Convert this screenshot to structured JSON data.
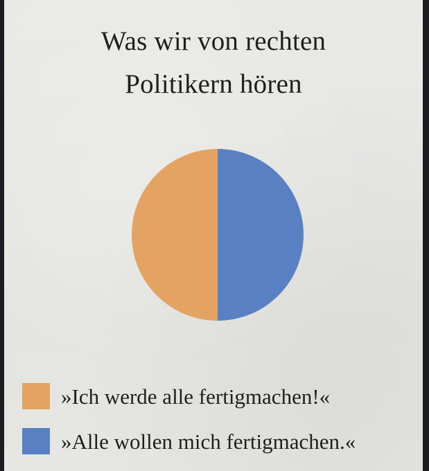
{
  "chart_data": {
    "type": "pie",
    "title": "Was wir von rechten Politikern hören",
    "title_lines": [
      "Was wir von rechten",
      "Politikern hören"
    ],
    "categories": [
      "»Ich werde alle fertigmachen!«",
      "»Alle wollen mich fertigmachen.«"
    ],
    "values": [
      50,
      50
    ],
    "colors": [
      "#e3a363",
      "#5a80c4"
    ],
    "legend": "bottom-left"
  }
}
